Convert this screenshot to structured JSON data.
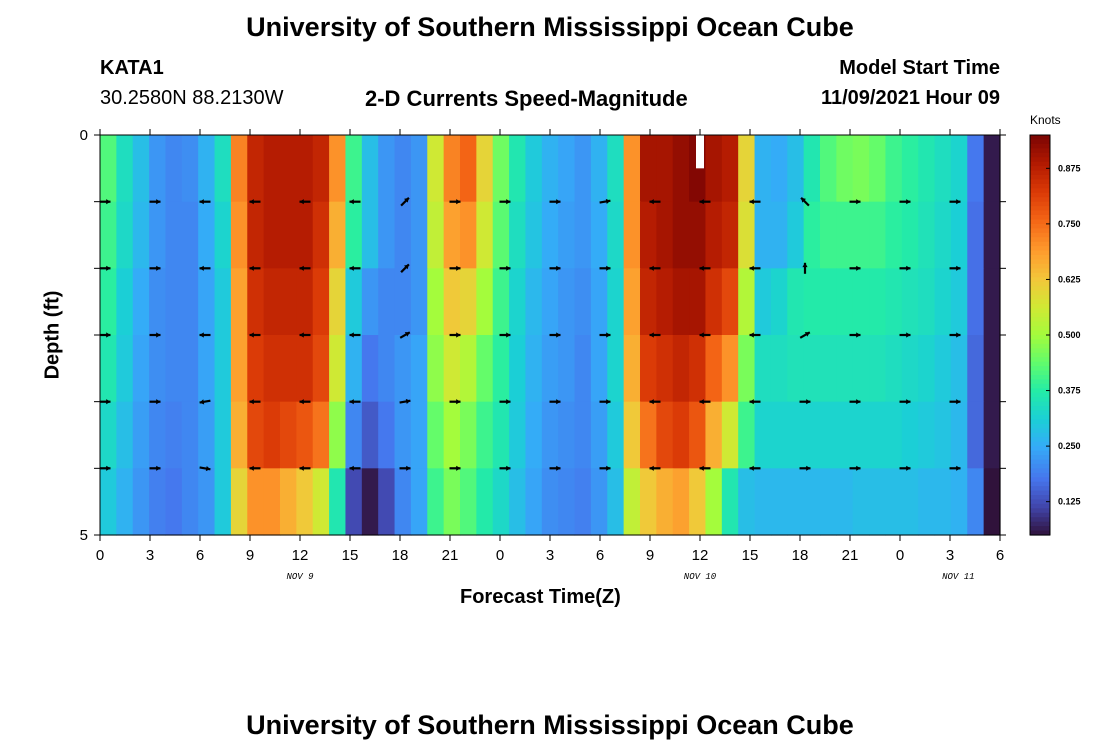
{
  "header": {
    "title": "University of Southern Mississippi Ocean Cube",
    "station_id": "KATA1",
    "coordinates": "30.2580N  88.2130W",
    "plot_title": "2-D Currents Speed-Magnitude",
    "model_label": "Model Start Time",
    "model_time": "11/09/2021 Hour 09"
  },
  "footer": {
    "title": "University of Southern Mississippi Ocean Cube"
  },
  "chart_data": {
    "type": "heatmap",
    "title": "2-D Currents Speed-Magnitude",
    "xlabel": "Forecast Time(Z)",
    "ylabel": "Depth (ft)",
    "x_tick_labels": [
      "0",
      "3",
      "6",
      "9",
      "12",
      "15",
      "18",
      "21",
      "0",
      "3",
      "6",
      "9",
      "12",
      "15",
      "18",
      "21",
      "0",
      "3",
      "6"
    ],
    "y_tick_labels": [
      "0",
      "5"
    ],
    "ylim": [
      0,
      5
    ],
    "date_labels": [
      "NOV 9",
      "NOV 10",
      "NOV 11"
    ],
    "colorbar": {
      "unit": "Knots",
      "range": [
        0.05,
        0.95
      ],
      "ticks": [
        "0.875",
        "0.750",
        "0.625",
        "0.500",
        "0.375",
        "0.250",
        "0.125"
      ]
    },
    "forecast_hours": [
      0,
      1,
      2,
      3,
      4,
      5,
      6,
      7,
      8,
      9,
      10,
      11,
      12,
      13,
      14,
      15,
      16,
      17,
      18,
      19,
      20,
      21,
      22,
      23,
      24,
      25,
      26,
      27,
      28,
      29,
      30,
      31,
      32,
      33,
      34,
      35,
      36,
      37,
      38,
      39,
      40,
      41,
      42,
      43,
      44,
      45,
      46,
      47,
      48,
      49,
      50,
      51,
      52,
      53,
      54
    ],
    "depth_levels_ft": [
      0,
      1,
      2,
      3,
      4,
      5
    ],
    "speed_knots": [
      [
        0.42,
        0.34,
        0.28,
        0.22,
        0.2,
        0.21,
        0.26,
        0.34,
        0.72,
        0.86,
        0.88,
        0.88,
        0.88,
        0.86,
        0.7,
        0.4,
        0.28,
        0.22,
        0.2,
        0.22,
        0.56,
        0.72,
        0.76,
        0.6,
        0.45,
        0.36,
        0.3,
        0.26,
        0.24,
        0.22,
        0.26,
        0.34,
        0.7,
        0.9,
        0.9,
        0.92,
        0.94,
        0.9,
        0.88,
        0.6,
        0.26,
        0.25,
        0.28,
        0.36,
        0.42,
        0.45,
        0.46,
        0.44,
        0.4,
        0.38,
        0.36,
        0.34,
        0.32,
        0.18,
        0.06
      ],
      [
        0.4,
        0.33,
        0.27,
        0.22,
        0.2,
        0.2,
        0.25,
        0.32,
        0.7,
        0.86,
        0.88,
        0.88,
        0.88,
        0.84,
        0.66,
        0.38,
        0.28,
        0.22,
        0.2,
        0.22,
        0.54,
        0.68,
        0.7,
        0.56,
        0.43,
        0.34,
        0.29,
        0.25,
        0.23,
        0.22,
        0.25,
        0.33,
        0.7,
        0.88,
        0.9,
        0.92,
        0.92,
        0.88,
        0.86,
        0.58,
        0.26,
        0.26,
        0.3,
        0.38,
        0.4,
        0.4,
        0.4,
        0.4,
        0.38,
        0.37,
        0.35,
        0.33,
        0.31,
        0.17,
        0.06
      ],
      [
        0.38,
        0.31,
        0.25,
        0.21,
        0.2,
        0.2,
        0.24,
        0.3,
        0.68,
        0.84,
        0.86,
        0.86,
        0.86,
        0.82,
        0.6,
        0.3,
        0.22,
        0.2,
        0.2,
        0.22,
        0.5,
        0.62,
        0.6,
        0.5,
        0.4,
        0.32,
        0.27,
        0.24,
        0.22,
        0.21,
        0.24,
        0.32,
        0.68,
        0.86,
        0.88,
        0.9,
        0.9,
        0.84,
        0.8,
        0.52,
        0.3,
        0.32,
        0.36,
        0.37,
        0.37,
        0.37,
        0.37,
        0.37,
        0.36,
        0.35,
        0.34,
        0.32,
        0.3,
        0.17,
        0.06
      ],
      [
        0.36,
        0.3,
        0.24,
        0.21,
        0.2,
        0.2,
        0.24,
        0.3,
        0.68,
        0.82,
        0.84,
        0.84,
        0.84,
        0.8,
        0.56,
        0.26,
        0.18,
        0.2,
        0.22,
        0.24,
        0.48,
        0.56,
        0.52,
        0.44,
        0.38,
        0.31,
        0.26,
        0.23,
        0.22,
        0.2,
        0.24,
        0.32,
        0.66,
        0.82,
        0.84,
        0.86,
        0.84,
        0.76,
        0.7,
        0.46,
        0.34,
        0.34,
        0.35,
        0.35,
        0.35,
        0.35,
        0.35,
        0.35,
        0.34,
        0.33,
        0.32,
        0.3,
        0.28,
        0.16,
        0.06
      ],
      [
        0.33,
        0.28,
        0.23,
        0.2,
        0.19,
        0.2,
        0.23,
        0.3,
        0.66,
        0.8,
        0.82,
        0.8,
        0.78,
        0.74,
        0.48,
        0.2,
        0.14,
        0.18,
        0.22,
        0.24,
        0.44,
        0.5,
        0.46,
        0.4,
        0.36,
        0.3,
        0.25,
        0.22,
        0.21,
        0.2,
        0.23,
        0.3,
        0.62,
        0.74,
        0.8,
        0.82,
        0.78,
        0.66,
        0.56,
        0.4,
        0.32,
        0.32,
        0.32,
        0.32,
        0.32,
        0.32,
        0.32,
        0.32,
        0.32,
        0.31,
        0.3,
        0.29,
        0.27,
        0.16,
        0.06
      ],
      [
        0.3,
        0.26,
        0.22,
        0.19,
        0.18,
        0.2,
        0.22,
        0.3,
        0.6,
        0.7,
        0.7,
        0.66,
        0.62,
        0.56,
        0.36,
        0.12,
        0.06,
        0.12,
        0.2,
        0.24,
        0.4,
        0.46,
        0.42,
        0.37,
        0.33,
        0.28,
        0.24,
        0.21,
        0.2,
        0.19,
        0.22,
        0.28,
        0.54,
        0.62,
        0.66,
        0.68,
        0.62,
        0.5,
        0.36,
        0.28,
        0.27,
        0.27,
        0.27,
        0.27,
        0.27,
        0.27,
        0.28,
        0.28,
        0.28,
        0.28,
        0.27,
        0.27,
        0.26,
        0.2,
        0.04
      ]
    ],
    "vector_hours": [
      0,
      3,
      6,
      9,
      12,
      15,
      18,
      21,
      24,
      27,
      30,
      33,
      36,
      39,
      42,
      45,
      48,
      51
    ],
    "vector_directions_deg": [
      [
        0,
        0,
        180,
        180,
        180,
        180,
        -45,
        0,
        0,
        0,
        -10,
        180,
        180,
        180,
        -135,
        0,
        0,
        0
      ],
      [
        0,
        0,
        180,
        180,
        180,
        180,
        -45,
        0,
        0,
        0,
        0,
        180,
        180,
        180,
        -90,
        0,
        0,
        0
      ],
      [
        0,
        0,
        180,
        180,
        180,
        180,
        -30,
        0,
        0,
        0,
        0,
        180,
        180,
        180,
        -30,
        0,
        0,
        0
      ],
      [
        0,
        0,
        170,
        180,
        180,
        180,
        -10,
        0,
        0,
        0,
        0,
        180,
        180,
        180,
        0,
        0,
        0,
        0
      ],
      [
        0,
        0,
        10,
        180,
        180,
        180,
        0,
        0,
        0,
        0,
        0,
        180,
        180,
        180,
        0,
        0,
        0,
        0
      ]
    ],
    "missing_cells": [
      {
        "hour": 36,
        "depth_index": 0
      }
    ]
  }
}
